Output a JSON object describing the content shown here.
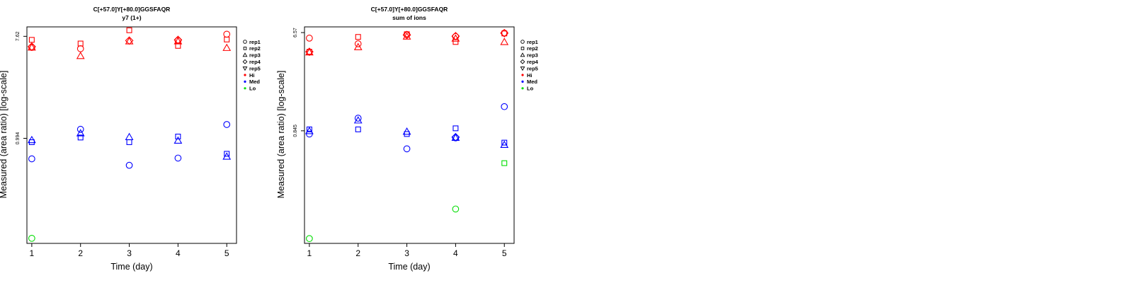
{
  "chart_data": [
    {
      "type": "scatter",
      "title": "C[+57.0]Y[+80.0]GGSFAQR",
      "subtitle": "y7 (1+)",
      "xlabel": "Time (day)",
      "ylabel": "Measured (area ratio) [log-scale]",
      "log_y": true,
      "ylim": [
        0.122,
        9.2
      ],
      "xlim": [
        0.9,
        5.2
      ],
      "x_ticks": [
        "1",
        "2",
        "3",
        "4",
        "5"
      ],
      "y_ticks": [
        "7.62",
        "0.994"
      ],
      "y_tick_values": [
        7.62,
        0.994
      ],
      "grid": false,
      "legend_position": "right",
      "series": [
        {
          "name": "Hi rep1",
          "color": "#ff0000",
          "shape": "circle",
          "points": [
            [
              1,
              6.1
            ],
            [
              2,
              5.95
            ],
            [
              4,
              7.0
            ],
            [
              5,
              7.95
            ]
          ]
        },
        {
          "name": "Hi rep2",
          "color": "#ff0000",
          "shape": "square",
          "points": [
            [
              1,
              7.1
            ],
            [
              2,
              6.6
            ],
            [
              3,
              8.6
            ],
            [
              4,
              6.3
            ],
            [
              5,
              7.15
            ]
          ]
        },
        {
          "name": "Hi rep3",
          "color": "#ff0000",
          "shape": "triangle",
          "points": [
            [
              1,
              6.1
            ],
            [
              2,
              5.15
            ],
            [
              3,
              6.9
            ],
            [
              4,
              6.9
            ],
            [
              5,
              6.05
            ]
          ]
        },
        {
          "name": "Hi rep4",
          "color": "#ff0000",
          "shape": "diamond",
          "points": [
            [
              1,
              6.2
            ],
            [
              3,
              7.0
            ],
            [
              4,
              7.1
            ]
          ]
        },
        {
          "name": "Med rep1",
          "color": "#0000ff",
          "shape": "circle",
          "points": [
            [
              1,
              0.66
            ],
            [
              2,
              1.19
            ],
            [
              3,
              0.58
            ],
            [
              4,
              0.67
            ],
            [
              5,
              1.31
            ]
          ]
        },
        {
          "name": "Med rep2",
          "color": "#0000ff",
          "shape": "square",
          "points": [
            [
              1,
              0.92
            ],
            [
              2,
              1.01
            ],
            [
              3,
              0.92
            ],
            [
              4,
              1.03
            ],
            [
              5,
              0.73
            ]
          ]
        },
        {
          "name": "Med rep3",
          "color": "#0000ff",
          "shape": "triangle",
          "points": [
            [
              1,
              0.96
            ],
            [
              2,
              1.1
            ],
            [
              3,
              1.02
            ],
            [
              4,
              0.95
            ],
            [
              5,
              0.69
            ]
          ]
        },
        {
          "name": "Lo rep1",
          "color": "#00dd00",
          "shape": "circle",
          "points": [
            [
              1,
              0.135
            ]
          ]
        }
      ]
    },
    {
      "type": "scatter",
      "title": "C[+57.0]Y[+80.0]GGSFAQR",
      "subtitle": "sum of ions",
      "xlabel": "Time (day)",
      "ylabel": "Measured (area ratio) [log-scale]",
      "log_y": true,
      "ylim": [
        0.0805,
        7.4
      ],
      "xlim": [
        0.9,
        5.2
      ],
      "x_ticks": [
        "1",
        "2",
        "3",
        "4",
        "5"
      ],
      "y_ticks": [
        "6.57",
        "0.845"
      ],
      "y_tick_values": [
        6.57,
        0.845
      ],
      "grid": false,
      "legend_position": "right",
      "series": [
        {
          "name": "Hi rep1",
          "color": "#ff0000",
          "shape": "circle",
          "points": [
            [
              1,
              5.85
            ],
            [
              2,
              5.2
            ],
            [
              3,
              6.3
            ],
            [
              4,
              6.05
            ],
            [
              5,
              6.5
            ]
          ]
        },
        {
          "name": "Hi rep2",
          "color": "#ff0000",
          "shape": "square",
          "points": [
            [
              1,
              4.4
            ],
            [
              2,
              6.0
            ],
            [
              3,
              6.35
            ],
            [
              4,
              5.4
            ],
            [
              5,
              6.45
            ]
          ]
        },
        {
          "name": "Hi rep3",
          "color": "#ff0000",
          "shape": "triangle",
          "points": [
            [
              1,
              4.35
            ],
            [
              2,
              4.85
            ],
            [
              3,
              6.05
            ],
            [
              4,
              5.8
            ],
            [
              5,
              5.4
            ]
          ]
        },
        {
          "name": "Hi rep4",
          "color": "#ff0000",
          "shape": "diamond",
          "points": [
            [
              1,
              4.4
            ],
            [
              3,
              6.25
            ],
            [
              4,
              6.1
            ],
            [
              5,
              6.5
            ]
          ]
        },
        {
          "name": "Med rep1",
          "color": "#0000ff",
          "shape": "circle",
          "points": [
            [
              1,
              0.79
            ],
            [
              2,
              1.1
            ],
            [
              3,
              0.58
            ],
            [
              4,
              0.73
            ],
            [
              5,
              1.4
            ]
          ]
        },
        {
          "name": "Med rep2",
          "color": "#0000ff",
          "shape": "square",
          "points": [
            [
              1,
              0.87
            ],
            [
              2,
              0.87
            ],
            [
              3,
              0.79
            ],
            [
              4,
              0.89
            ],
            [
              5,
              0.66
            ]
          ]
        },
        {
          "name": "Med rep3",
          "color": "#0000ff",
          "shape": "triangle",
          "points": [
            [
              1,
              0.84
            ],
            [
              2,
              1.05
            ],
            [
              3,
              0.83
            ],
            [
              4,
              0.73
            ],
            [
              5,
              0.63
            ]
          ]
        },
        {
          "name": "Med rep4",
          "color": "#0000ff",
          "shape": "diamond",
          "points": [
            [
              4,
              0.74
            ]
          ]
        },
        {
          "name": "Lo rep2",
          "color": "#00dd00",
          "shape": "square",
          "points": [
            [
              5,
              0.43
            ]
          ]
        },
        {
          "name": "Lo rep1",
          "color": "#00dd00",
          "shape": "circle",
          "points": [
            [
              1,
              0.089
            ],
            [
              4,
              0.165
            ]
          ]
        }
      ]
    }
  ],
  "legend": {
    "items": [
      {
        "label": "rep1",
        "shape": "circle",
        "color": "#000000"
      },
      {
        "label": "rep2",
        "shape": "square",
        "color": "#000000"
      },
      {
        "label": "rep3",
        "shape": "triangle",
        "color": "#000000"
      },
      {
        "label": "rep4",
        "shape": "diamond",
        "color": "#000000"
      },
      {
        "label": "rep5",
        "shape": "triangle-down",
        "color": "#000000"
      },
      {
        "label": "Hi",
        "shape": "dot",
        "color": "#ff0000"
      },
      {
        "label": "Med",
        "shape": "dot",
        "color": "#0000ff"
      },
      {
        "label": "Lo",
        "shape": "dot",
        "color": "#00dd00"
      }
    ]
  }
}
